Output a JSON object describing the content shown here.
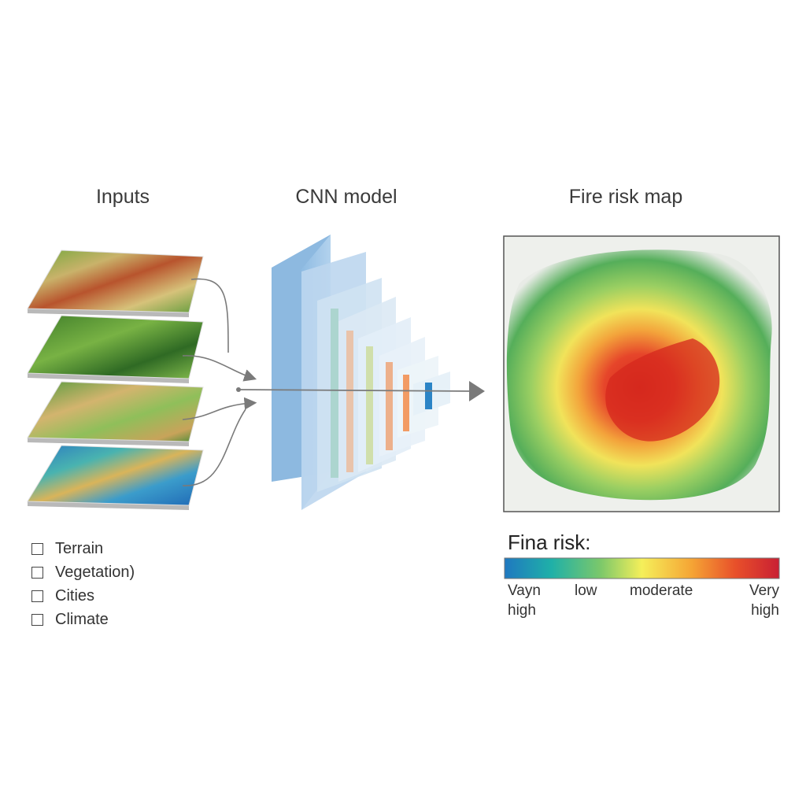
{
  "headings": {
    "inputs": "Inputs",
    "model": "CNN model",
    "output": "Fire risk map"
  },
  "input_layers": [
    {
      "label": "Terrain"
    },
    {
      "label": "Vegetation)"
    },
    {
      "label": "Cities"
    },
    {
      "label": "Climate"
    }
  ],
  "risk_legend": {
    "title": "Fina risk:",
    "labels": [
      "Vayn high",
      "low",
      "moderate",
      "Very high"
    ],
    "gradient_colors": [
      "#1f78c0",
      "#1fb0a8",
      "#7cc86a",
      "#f5ef5a",
      "#f5a535",
      "#e8502a",
      "#c91f33"
    ]
  },
  "colors": {
    "arrow": "#7a7a7a",
    "model_layer": "#a9cbe8",
    "map_border": "#555555"
  }
}
